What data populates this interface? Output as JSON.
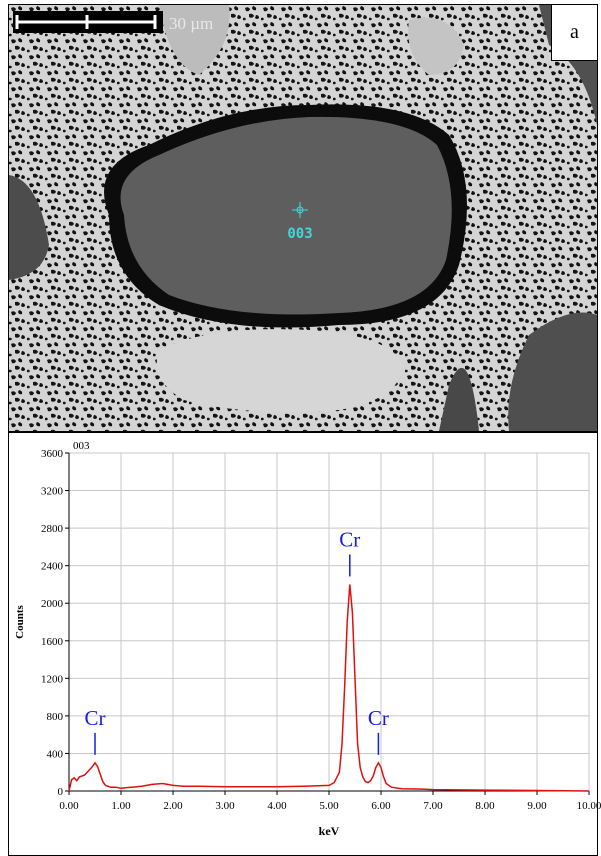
{
  "micrograph": {
    "panel_label": "a",
    "scale_bar_label": "30 µm",
    "spot_label": "003",
    "colors": {
      "spot": "#3fd9d9",
      "matrix": "#4a4a4a",
      "grain": "#5f5f5f",
      "pores": "#0d0d0d",
      "bright_phase": "#d8d8d8"
    }
  },
  "chart_data": {
    "type": "line",
    "title": "003",
    "xlabel": "keV",
    "ylabel": "Counts",
    "xlim": [
      0,
      10
    ],
    "ylim": [
      0,
      3600
    ],
    "xticks": [
      "0.00",
      "1.00",
      "2.00",
      "3.00",
      "4.00",
      "5.00",
      "6.00",
      "7.00",
      "8.00",
      "9.00",
      "10.00"
    ],
    "yticks": [
      "0",
      "400",
      "800",
      "1200",
      "1600",
      "2000",
      "2400",
      "2800",
      "3200",
      "3600"
    ],
    "grid": true,
    "series": [
      {
        "color": "#e01010",
        "x": [
          0.0,
          0.05,
          0.1,
          0.15,
          0.2,
          0.25,
          0.3,
          0.35,
          0.4,
          0.45,
          0.5,
          0.55,
          0.6,
          0.65,
          0.7,
          0.8,
          0.9,
          1.0,
          1.2,
          1.4,
          1.6,
          1.8,
          2.0,
          2.2,
          2.5,
          3.0,
          3.5,
          4.0,
          4.5,
          4.8,
          5.0,
          5.1,
          5.2,
          5.25,
          5.3,
          5.35,
          5.4,
          5.45,
          5.5,
          5.55,
          5.6,
          5.65,
          5.7,
          5.75,
          5.8,
          5.85,
          5.9,
          5.95,
          6.0,
          6.05,
          6.1,
          6.2,
          6.4,
          6.8,
          7.0,
          8.0,
          9.0,
          10.0
        ],
        "y": [
          0,
          120,
          140,
          110,
          150,
          160,
          170,
          200,
          230,
          260,
          300,
          260,
          180,
          100,
          60,
          40,
          40,
          30,
          40,
          50,
          70,
          80,
          60,
          50,
          50,
          45,
          45,
          45,
          50,
          55,
          60,
          90,
          200,
          500,
          1100,
          1800,
          2200,
          1900,
          1200,
          500,
          250,
          150,
          100,
          90,
          110,
          160,
          250,
          300,
          250,
          150,
          80,
          40,
          25,
          20,
          15,
          10,
          5,
          0
        ]
      }
    ],
    "annotations": [
      {
        "label": "Cr",
        "x": 0.5,
        "y": 300
      },
      {
        "label": "Cr",
        "x": 5.4,
        "y": 2200
      },
      {
        "label": "Cr",
        "x": 5.95,
        "y": 300
      }
    ],
    "annotation_color": "#1a1ae0"
  }
}
